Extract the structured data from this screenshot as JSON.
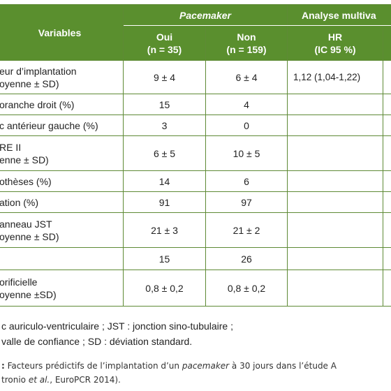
{
  "table": {
    "header": {
      "variables": "Variables",
      "group_pacemaker": "Pacemaker",
      "group_multivariate": "Analyse multiva",
      "oui": "Oui",
      "oui_n": "(n = 35)",
      "non": "Non",
      "non_n": "(n = 159)",
      "hr": "HR",
      "hr_ci": "(IC 95 %)"
    },
    "rows": [
      {
        "label": [
          "eur d’implantation",
          "oyenne ± SD)"
        ],
        "oui": "9 ± 4",
        "non": "6 ± 4",
        "hr": "1,12 (1,04-1,22)"
      },
      {
        "label": [
          "oranche droit (%)"
        ],
        "oui": "15",
        "non": "4",
        "hr": ""
      },
      {
        "label": [
          "c antérieur gauche (%)"
        ],
        "oui": "3",
        "non": "0",
        "hr": ""
      },
      {
        "label": [
          "RE II",
          "enne ± SD)"
        ],
        "oui": "6 ± 5",
        "non": "10 ± 5",
        "hr": ""
      },
      {
        "label": [
          "othèses (%)"
        ],
        "oui": "14",
        "non": "6",
        "hr": ""
      },
      {
        "label": [
          "ation (%)"
        ],
        "oui": "91",
        "non": "97",
        "hr": ""
      },
      {
        "label": [
          "anneau JST",
          "oyenne ± SD)"
        ],
        "oui": "21 ± 3",
        "non": "21 ± 2",
        "hr": ""
      },
      {
        "label": [
          ""
        ],
        "oui": "15",
        "non": "26",
        "hr": ""
      },
      {
        "label": [
          "orificielle",
          "oyenne ±SD)"
        ],
        "oui": "0,8 ± 0,2",
        "non": "0,8 ± 0,2",
        "hr": ""
      }
    ]
  },
  "notes": [
    "c auriculo-ventriculaire ; JST : jonction sino-tubulaire ;",
    "valle de confiance ; SD : déviation standard."
  ],
  "caption": {
    "lead": ":",
    "line1_a": " Facteurs prédictifs de l’implantation d’un ",
    "line1_em": "pacemaker",
    "line1_b": " à 30 jours dans l’étude A",
    "line2_a": "tronio ",
    "line2_em": "et al.",
    "line2_b": ", EuroPCR 2014)."
  },
  "colors": {
    "header_bg": "#5a8f2e",
    "grid": "#5e8a35"
  }
}
